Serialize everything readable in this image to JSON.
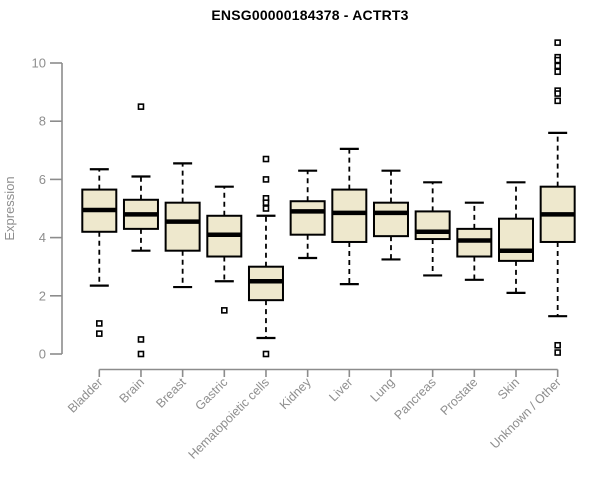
{
  "chart_data": {
    "type": "boxplot",
    "title": "ENSG00000184378 - ACTRT3",
    "ylabel": "Expression",
    "xlabel": "",
    "ylim": [
      0,
      10
    ],
    "yticks": [
      0,
      2,
      4,
      6,
      8,
      10
    ],
    "grid": false,
    "legend": false,
    "categories": [
      "Bladder",
      "Brain",
      "Breast",
      "Gastric",
      "Hematopoietic cells",
      "Kidney",
      "Liver",
      "Lung",
      "Pancreas",
      "Prostate",
      "Skin",
      "Unknown / Other"
    ],
    "boxes": [
      {
        "category": "Bladder",
        "whisker_low": 2.35,
        "q1": 4.2,
        "median": 4.95,
        "q3": 5.65,
        "whisker_high": 6.35,
        "outliers": [
          1.05,
          0.7
        ]
      },
      {
        "category": "Brain",
        "whisker_low": 3.55,
        "q1": 4.3,
        "median": 4.8,
        "q3": 5.3,
        "whisker_high": 6.1,
        "outliers": [
          8.5,
          0.5,
          0.0
        ]
      },
      {
        "category": "Breast",
        "whisker_low": 2.3,
        "q1": 3.55,
        "median": 4.55,
        "q3": 5.2,
        "whisker_high": 6.55,
        "outliers": []
      },
      {
        "category": "Gastric",
        "whisker_low": 2.5,
        "q1": 3.35,
        "median": 4.1,
        "q3": 4.75,
        "whisker_high": 5.75,
        "outliers": [
          1.5
        ]
      },
      {
        "category": "Hematopoietic cells",
        "whisker_low": 0.55,
        "q1": 1.85,
        "median": 2.5,
        "q3": 3.0,
        "whisker_high": 4.75,
        "outliers": [
          6.7,
          6.0,
          5.35,
          5.2,
          5.0,
          0.0
        ]
      },
      {
        "category": "Kidney",
        "whisker_low": 3.3,
        "q1": 4.1,
        "median": 4.9,
        "q3": 5.25,
        "whisker_high": 6.3,
        "outliers": []
      },
      {
        "category": "Liver",
        "whisker_low": 2.4,
        "q1": 3.85,
        "median": 4.85,
        "q3": 5.65,
        "whisker_high": 7.05,
        "outliers": []
      },
      {
        "category": "Lung",
        "whisker_low": 3.25,
        "q1": 4.05,
        "median": 4.85,
        "q3": 5.2,
        "whisker_high": 6.3,
        "outliers": []
      },
      {
        "category": "Pancreas",
        "whisker_low": 2.7,
        "q1": 3.95,
        "median": 4.2,
        "q3": 4.9,
        "whisker_high": 5.9,
        "outliers": []
      },
      {
        "category": "Prostate",
        "whisker_low": 2.55,
        "q1": 3.35,
        "median": 3.9,
        "q3": 4.3,
        "whisker_high": 5.2,
        "outliers": []
      },
      {
        "category": "Skin",
        "whisker_low": 2.1,
        "q1": 3.2,
        "median": 3.55,
        "q3": 4.65,
        "whisker_high": 5.9,
        "outliers": []
      },
      {
        "category": "Unknown / Other",
        "whisker_low": 1.3,
        "q1": 3.85,
        "median": 4.8,
        "q3": 5.75,
        "whisker_high": 7.6,
        "outliers": [
          10.7,
          10.2,
          10.1,
          9.9,
          9.7,
          9.05,
          8.95,
          8.7,
          0.3,
          0.05
        ]
      }
    ],
    "style": {
      "box_fill": "#EEE8CD",
      "box_stroke": "#000000",
      "median_color": "#000000",
      "whisker_color": "#000000",
      "outlier_stroke": "#000000",
      "outlier_fill": "#ffffff",
      "axis_color": "#8c8c8c",
      "tick_label_color": "#8e8e8e",
      "title_color": "#000000",
      "background": "#ffffff"
    }
  }
}
